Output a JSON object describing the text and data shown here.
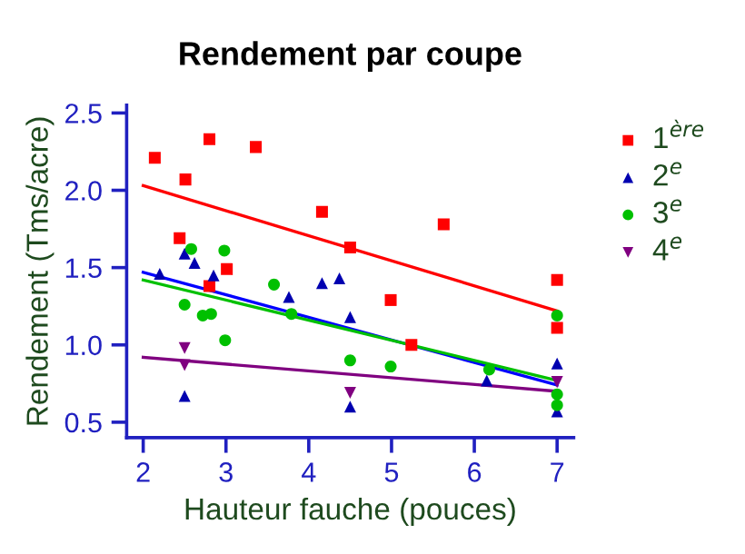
{
  "chart_data": {
    "type": "scatter",
    "title": "Rendement par coupe",
    "xlabel": "Hauteur fauche (pouces)",
    "ylabel": "Rendement (Tms/acre)",
    "xlim": [
      1.8,
      7.2
    ],
    "ylim": [
      0.4,
      2.55
    ],
    "xticks": [
      2,
      3,
      4,
      5,
      6,
      7
    ],
    "yticks": [
      0.5,
      {
        "value": 1,
        "label": "1.0"
      },
      1.5,
      {
        "value": 2,
        "label": "2.0"
      },
      2.5
    ],
    "grid": false,
    "legend": "right",
    "series": [
      {
        "name": "1$^{ère}$",
        "color": "#ff0000",
        "marker": "square",
        "x": [
          2.14,
          2.51,
          2.8,
          3.36,
          2.44,
          2.8,
          3.01,
          4.16,
          4.5,
          4.99,
          5.24,
          5.63,
          7,
          7
        ],
        "values": [
          2.21,
          2.07,
          2.33,
          2.28,
          1.69,
          1.38,
          1.49,
          1.86,
          1.63,
          1.29,
          1.0,
          1.78,
          1.42,
          1.11
        ]
      },
      {
        "name": "2$^{e}$",
        "color": "#0000b0",
        "marker": "triangle",
        "x": [
          2.2,
          2.5,
          2.62,
          2.85,
          2.5,
          3.76,
          4.16,
          4.37,
          4.5,
          4.5,
          6.15,
          7,
          7
        ],
        "values": [
          1.46,
          1.59,
          1.53,
          1.45,
          0.67,
          1.31,
          1.4,
          1.43,
          1.18,
          0.6,
          0.77,
          0.88,
          0.57
        ]
      },
      {
        "name": "3$^{e}$",
        "color": "#00c000",
        "marker": "circle",
        "x": [
          2.58,
          2.5,
          2.72,
          2.82,
          2.98,
          2.99,
          3.58,
          3.79,
          4.5,
          4.99,
          6.18,
          7,
          7,
          7
        ],
        "values": [
          1.62,
          1.26,
          1.19,
          1.2,
          1.61,
          1.03,
          1.39,
          1.2,
          0.9,
          0.86,
          0.84,
          1.19,
          0.68,
          0.61
        ]
      },
      {
        "name": "4$^{e}$",
        "color": "#800080",
        "marker": "triangle_down",
        "x": [
          2.5,
          2.5,
          4.5,
          7
        ],
        "values": [
          0.98,
          0.87,
          0.69,
          0.76
        ]
      },
      {
        "type": "line",
        "color": "#ff0000",
        "x": [
          2,
          7
        ],
        "values": [
          2.03,
          1.22
        ]
      },
      {
        "type": "line",
        "color": "#0000ff",
        "x": [
          2,
          7
        ],
        "values": [
          1.47,
          0.74
        ]
      },
      {
        "type": "line",
        "color": "#00c000",
        "x": [
          2,
          7
        ],
        "values": [
          1.42,
          0.77
        ]
      },
      {
        "type": "line",
        "color": "#800080",
        "x": [
          2,
          7
        ],
        "values": [
          0.92,
          0.7
        ]
      }
    ]
  }
}
